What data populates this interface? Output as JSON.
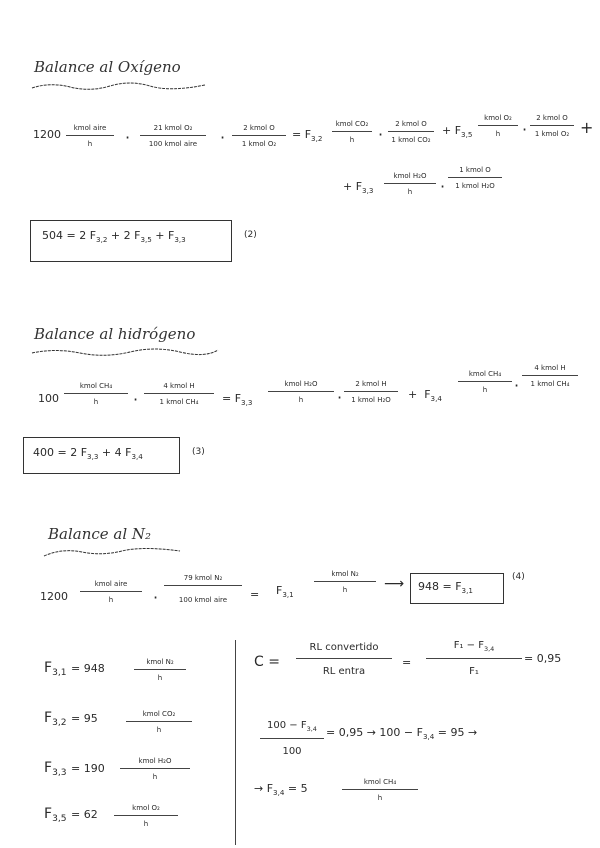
{
  "oxygen": {
    "title": "Balance al Oxígeno",
    "lhs_value": "1200",
    "t1": {
      "num": "kmol aire",
      "den": "h"
    },
    "t2": {
      "num": "21 kmol O₂",
      "den": "100 kmol aire"
    },
    "t3": {
      "num": "2 kmol O",
      "den": "1 kmol O₂"
    },
    "eq": "=",
    "f32": {
      "base": "F",
      "sub": "3,2"
    },
    "t4": {
      "num": "kmol CO₂",
      "den": "h"
    },
    "t5": {
      "num": "2 kmol O",
      "den": "1 kmol CO₂"
    },
    "plus1": "+",
    "f35": {
      "base": "F",
      "sub": "3,5"
    },
    "t6": {
      "num": "kmol O₂",
      "den": "h"
    },
    "t7": {
      "num": "2 kmol O",
      "den": "1 kmol O₂"
    },
    "plus2": "+",
    "plus3": "+",
    "f33": {
      "base": "F",
      "sub": "3,3"
    },
    "t8": {
      "num": "kmol H₂O",
      "den": "h"
    },
    "t9": {
      "num": "1 kmol O",
      "den": "1 kmol H₂O"
    },
    "result": {
      "a": "504 = 2 F",
      "s1": "3,2",
      "b": " + 2 F",
      "s2": "3,5",
      "c": " + F",
      "s3": "3,3"
    },
    "label": "(2)"
  },
  "hydrogen": {
    "title": "Balance al hidrógeno",
    "lhs_value": "100",
    "t1": {
      "num": "kmol CH₄",
      "den": "h"
    },
    "t2": {
      "num": "4 kmol H",
      "den": "1 kmol CH₄"
    },
    "eq": "=",
    "f33": {
      "base": "F",
      "sub": "3,3"
    },
    "t3": {
      "num": "kmol H₂O",
      "den": "h"
    },
    "t4": {
      "num": "2 kmol H",
      "den": "1 kmol H₂O"
    },
    "plus": "+",
    "f34": {
      "base": "F",
      "sub": "3,4"
    },
    "t5": {
      "num": "kmol CH₄",
      "den": "h"
    },
    "t6": {
      "num": "4 kmol H",
      "den": "1 kmol CH₄"
    },
    "result": {
      "a": "400 = 2 F",
      "s1": "3,3",
      "b": " + 4 F",
      "s2": "3,4"
    },
    "label": "(3)"
  },
  "nitrogen": {
    "title": "Balance al N₂",
    "lhs_value": "1200",
    "t1": {
      "num": "kmol aire",
      "den": "h"
    },
    "t2": {
      "num": "79 kmol N₂",
      "den": "100 kmol aire"
    },
    "eq": "=",
    "f31": {
      "base": "F",
      "sub": "3,1"
    },
    "t3": {
      "num": "kmol N₂",
      "den": "h"
    },
    "arrow": "⟶",
    "result": {
      "a": "948 = F",
      "s1": "3,1"
    },
    "label": "(4)"
  },
  "results": [
    {
      "base": "F",
      "sub": "3,1",
      "value": "= 948",
      "num": "kmol N₂",
      "den": "h"
    },
    {
      "base": "F",
      "sub": "3,2",
      "value": "= 95",
      "num": "kmol CO₂",
      "den": "h"
    },
    {
      "base": "F",
      "sub": "3,3",
      "value": "= 190",
      "num": "kmol H₂O",
      "den": "h"
    },
    {
      "base": "F",
      "sub": "3,5",
      "value": "= 62",
      "num": "kmol O₂",
      "den": "h"
    }
  ],
  "conversion": {
    "c_eq": "C =",
    "f1": {
      "num": "RL convertido",
      "den": "RL entra"
    },
    "eq": "=",
    "f2": {
      "num_a": "F₁ − F",
      "num_sub": "3,4",
      "den": "F₁"
    },
    "val": "= 0,95",
    "f3": {
      "num_a": "100 − F",
      "num_sub": "3,4",
      "den": "100"
    },
    "line2": {
      "a": "= 0,95 → 100 − F",
      "s": "3,4",
      "b": " = 95 →"
    },
    "line3": {
      "a": "→ F",
      "s": "3,4",
      "b": " = 5"
    },
    "f4": {
      "num": "kmol CH₄",
      "den": "h"
    }
  }
}
